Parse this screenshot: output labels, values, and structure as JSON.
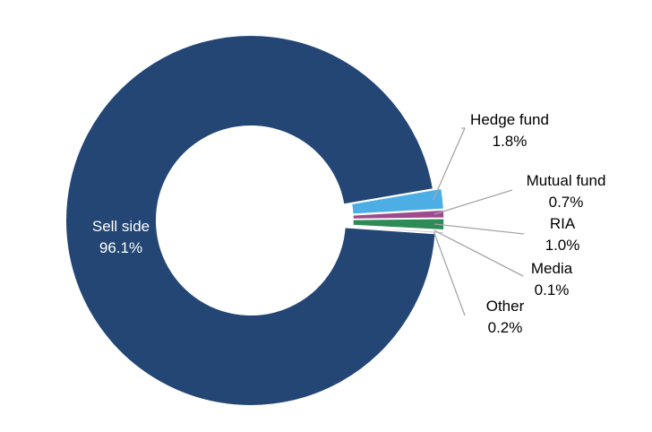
{
  "chart_data": {
    "type": "pie",
    "variant": "donut",
    "title": "",
    "legend": "none",
    "slices": [
      {
        "label": "Sell side",
        "value": 96.1,
        "display": "96.1%",
        "color": "#234675",
        "label_color": "#ffffff"
      },
      {
        "label": "Hedge fund",
        "value": 1.8,
        "display": "1.8%",
        "color": "#4DAEE5",
        "label_color": "#000000"
      },
      {
        "label": "Mutual fund",
        "value": 0.7,
        "display": "0.7%",
        "color": "#9E4A8E",
        "label_color": "#000000"
      },
      {
        "label": "RIA",
        "value": 1.0,
        "display": "1.0%",
        "color": "#2E8B57",
        "label_color": "#000000"
      },
      {
        "label": "Media",
        "value": 0.1,
        "display": "0.1%",
        "color": "#7F7F7F",
        "label_color": "#000000"
      },
      {
        "label": "Other",
        "value": 0.2,
        "display": "0.2%",
        "color": "#C8C8C8",
        "label_color": "#000000"
      }
    ],
    "colors": {
      "leader_line": "#A6A6A6",
      "slice_border": "#ffffff"
    }
  }
}
